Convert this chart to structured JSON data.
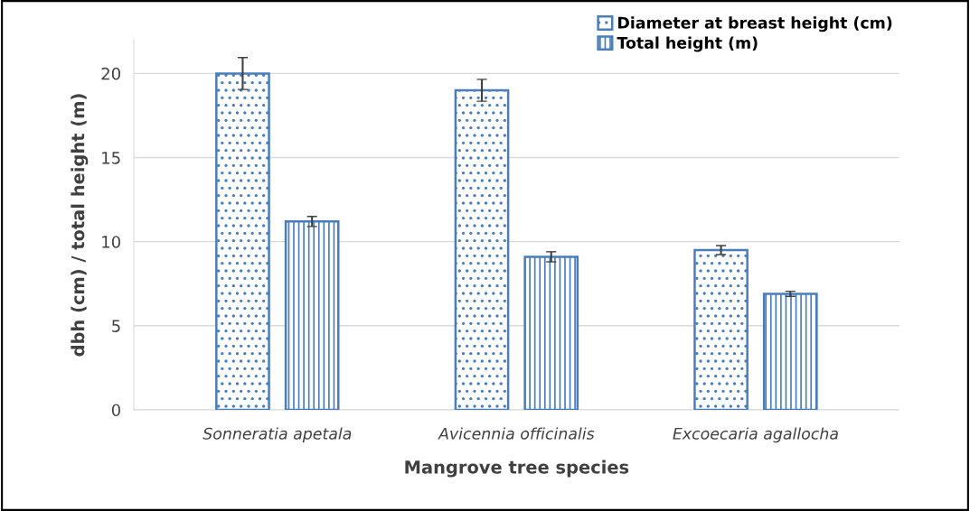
{
  "chart_data": {
    "type": "bar",
    "xlabel": "Mangrove tree species",
    "ylabel": "dbh (cm) / total height (m)",
    "categories": [
      "Sonneratia apetala",
      "Avicennia officinalis",
      "Excoecaria agallocha"
    ],
    "series": [
      {
        "name": "Diameter at breast height (cm)",
        "color": "#4a7ebb",
        "values": [
          20.0,
          19.0,
          9.5
        ],
        "errors": [
          0.95,
          0.65,
          0.27
        ]
      },
      {
        "name": "Total height (m)",
        "color": "#4a7ebb",
        "values": [
          11.2,
          9.1,
          6.9
        ],
        "errors": [
          0.3,
          0.3,
          0.15
        ]
      }
    ],
    "ylim": [
      0,
      22
    ],
    "yticks": [
      0,
      5,
      10,
      15,
      20
    ],
    "grid": "y",
    "legend": "top right"
  }
}
